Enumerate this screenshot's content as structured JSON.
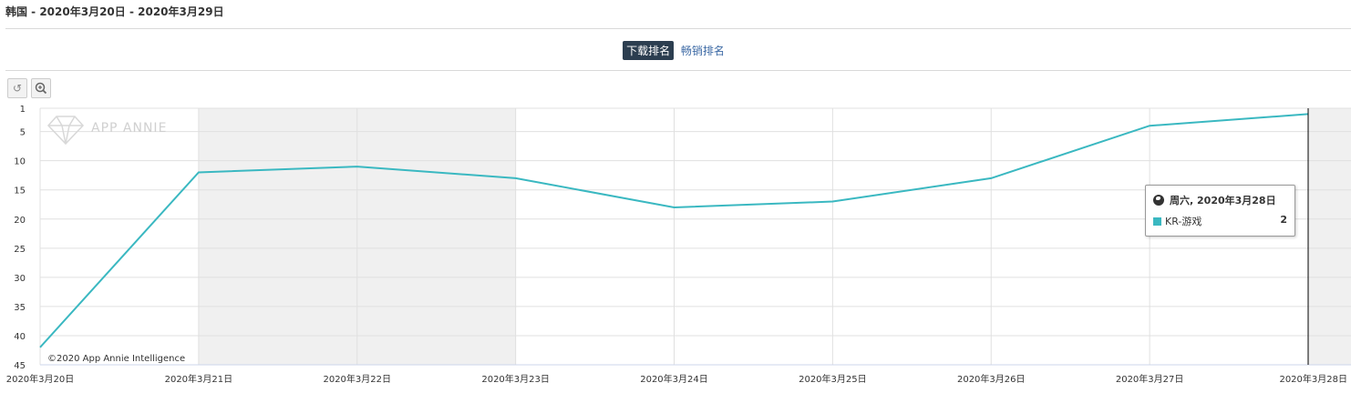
{
  "header": {
    "title": "韩国 - 2020年3月20日 - 2020年3月29日"
  },
  "tabs": [
    {
      "label": "下载排名",
      "active": true
    },
    {
      "label": "畅销排名",
      "active": false
    }
  ],
  "toolbar": {
    "reset_icon": "undo-icon",
    "zoom_icon": "zoom-in-icon"
  },
  "watermark": {
    "text": "APP ANNIE",
    "icon": "diamond-icon"
  },
  "credit": "©2020 App Annie Intelligence",
  "colors": {
    "series": "#3ab8c1",
    "weekend_band": "#f0f0f0",
    "grid": "#e0e0e0"
  },
  "tooltip": {
    "header": "周六, 2020年3月28日",
    "icon": "globe-icon",
    "series_name": "KR-游戏",
    "value": "2"
  },
  "chart_data": {
    "type": "line",
    "y_reversed": true,
    "ylim": [
      1,
      45
    ],
    "yticks": [
      1,
      5,
      10,
      15,
      20,
      25,
      30,
      35,
      40,
      45
    ],
    "categories": [
      "2020年3月20日",
      "2020年3月21日",
      "2020年3月22日",
      "2020年3月23日",
      "2020年3月24日",
      "2020年3月25日",
      "2020年3月26日",
      "2020年3月27日",
      "2020年3月28日"
    ],
    "series": [
      {
        "name": "KR-游戏",
        "values": [
          42,
          12,
          11,
          13,
          18,
          17,
          13,
          4,
          2
        ]
      }
    ],
    "weekend_bands": [
      [
        1,
        3
      ],
      [
        8,
        9
      ]
    ],
    "highlight_index": 8,
    "grid": true,
    "legend": "none"
  }
}
